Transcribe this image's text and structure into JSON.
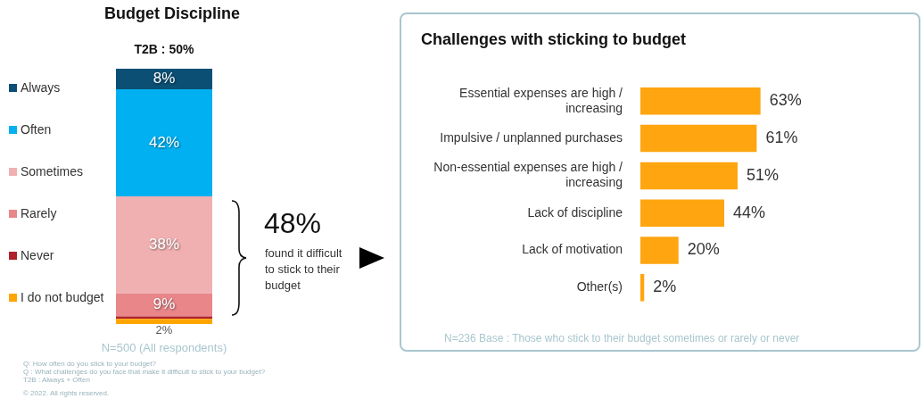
{
  "chart_data": [
    {
      "type": "bar",
      "title": "Budget Discipline",
      "subtitle": "T2B : 50%",
      "categories": [
        null
      ],
      "stacked": true,
      "legend": "left",
      "tick_labels": false,
      "series": [
        {
          "name": "I do not budget",
          "color": "#ffa500",
          "values": [
            2
          ],
          "value_labels": [
            "2%"
          ]
        },
        {
          "name": "Never",
          "color": "#b0202a",
          "values": [
            1
          ],
          "value_labels": [
            null
          ]
        },
        {
          "name": "Rarely",
          "color": "#e8868a",
          "values": [
            9
          ],
          "value_labels": [
            "9%"
          ]
        },
        {
          "name": "Sometimes",
          "color": "#f0b0b2",
          "values": [
            38
          ],
          "value_labels": [
            "38%"
          ]
        },
        {
          "name": "Often",
          "color": "#00b0f0",
          "values": [
            42
          ],
          "value_labels": [
            "42%"
          ]
        },
        {
          "name": "Always",
          "color": "#0b4f75",
          "values": [
            8
          ],
          "value_labels": [
            "8%"
          ]
        }
      ],
      "annotations": [
        "48%",
        "found it difficult to stick to their budget",
        "N=500 (All respondents)",
        "Q: How often do you stick to your budget?",
        "Q : What challenges do you face that make it difficult to stick to your budget?",
        "T2B : Always + Often",
        "© 2022. All rights reserved."
      ]
    },
    {
      "type": "bar",
      "orientation": "horizontal",
      "title": "Challenges with sticking to budget",
      "tick_labels": "y",
      "categories": [
        "Essential expenses are high / increasing",
        "Impulsive / unplanned purchases",
        "Non-essential expenses are high / increasing",
        "Lack of discipline",
        "Lack of motivation",
        "Other(s)"
      ],
      "values": [
        63,
        61,
        51,
        44,
        20,
        2
      ],
      "color": "#ffa50f",
      "value_labels": [
        "63%",
        "61%",
        "51%",
        "44%",
        "20%",
        "2%"
      ],
      "annotations": [
        "N=236 Base : Those who stick to their budget sometimes or rarely or never"
      ]
    }
  ]
}
